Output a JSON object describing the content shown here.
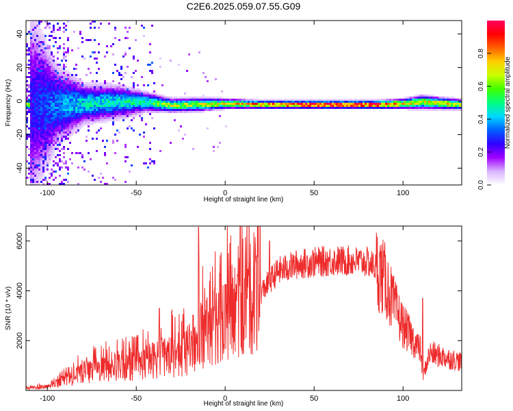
{
  "title": "C2E6.2025.059.07.55.G09",
  "chart_data": [
    {
      "type": "heatmap",
      "xlabel": "Height of straight line (km)",
      "ylabel": "Frequency (Hz)",
      "xlim": [
        -112,
        133
      ],
      "ylim": [
        -50,
        48
      ],
      "xticks": [
        -100,
        -50,
        0,
        50,
        100
      ],
      "yticks": [
        -40,
        -20,
        0,
        20,
        40
      ],
      "colorbar": {
        "label": "Normalized spectral amplitude",
        "range": [
          0,
          1
        ],
        "ticks": [
          0.0,
          0.2,
          0.4,
          0.6,
          0.8
        ],
        "colors": [
          "#ffffff",
          "#d9b3ff",
          "#a000ff",
          "#3000ff",
          "#0060ff",
          "#00d8ff",
          "#00ff80",
          "#40ff00",
          "#c8ff00",
          "#ffd000",
          "#ff6000",
          "#ff0000",
          "#ff0060"
        ]
      },
      "trace": [
        {
          "x": -110,
          "f": -2,
          "spread": 30,
          "amp": 0.25
        },
        {
          "x": -95,
          "f": -2,
          "spread": 12,
          "amp": 0.35
        },
        {
          "x": -80,
          "f": -1,
          "spread": 6,
          "amp": 0.45
        },
        {
          "x": -60,
          "f": 0,
          "spread": 5,
          "amp": 0.45
        },
        {
          "x": -45,
          "f": 0,
          "spread": 3,
          "amp": 0.5
        },
        {
          "x": -30,
          "f": -2,
          "spread": 2,
          "amp": 0.65
        },
        {
          "x": -15,
          "f": -1.5,
          "spread": 2,
          "amp": 0.65
        },
        {
          "x": 0,
          "f": -1,
          "spread": 1.5,
          "amp": 0.7
        },
        {
          "x": 20,
          "f": -1.5,
          "spread": 1.2,
          "amp": 0.85
        },
        {
          "x": 50,
          "f": -1.5,
          "spread": 1.2,
          "amp": 0.95
        },
        {
          "x": 85,
          "f": -1.5,
          "spread": 1.2,
          "amp": 0.95
        },
        {
          "x": 100,
          "f": -1,
          "spread": 1.5,
          "amp": 0.75
        },
        {
          "x": 110,
          "f": 0,
          "spread": 2,
          "amp": 0.7
        },
        {
          "x": 133,
          "f": -1.5,
          "spread": 1.5,
          "amp": 0.7
        }
      ]
    },
    {
      "type": "line",
      "xlabel": "Height of straight line (km)",
      "ylabel": "SNR (10 * v/v)",
      "xlim": [
        -112,
        133
      ],
      "ylim": [
        0,
        6600
      ],
      "xticks": [
        -100,
        -50,
        0,
        50,
        100
      ],
      "yticks": [
        2000,
        4000,
        6000
      ],
      "series": [
        {
          "color": "#ee2b2b",
          "envelope_x": [
            -112,
            -100,
            -90,
            -80,
            -70,
            -60,
            -50,
            -40,
            -30,
            -20,
            -16,
            -15,
            -10,
            -5,
            0,
            5,
            10,
            15,
            20,
            25,
            30,
            40,
            50,
            60,
            70,
            80,
            85,
            90,
            95,
            100,
            105,
            110,
            111,
            115,
            120,
            125,
            133
          ],
          "envelope_y": [
            80,
            150,
            400,
            700,
            850,
            900,
            1000,
            1250,
            1400,
            1500,
            1700,
            2300,
            2400,
            2700,
            3100,
            3200,
            3300,
            3700,
            3900,
            4400,
            4800,
            5050,
            5150,
            5200,
            5200,
            5150,
            4950,
            4400,
            3400,
            2600,
            2100,
            1600,
            500,
            1500,
            1400,
            1300,
            1150
          ],
          "spikes": [
            {
              "x": -15,
              "y": 6550
            },
            {
              "x": -3,
              "y": 4700
            },
            {
              "x": 8,
              "y": 5300
            },
            {
              "x": 25,
              "y": 6000
            },
            {
              "x": 111,
              "y": 3700
            },
            {
              "x": -37,
              "y": 3300
            },
            {
              "x": 0,
              "y": 4250
            }
          ]
        }
      ]
    }
  ]
}
